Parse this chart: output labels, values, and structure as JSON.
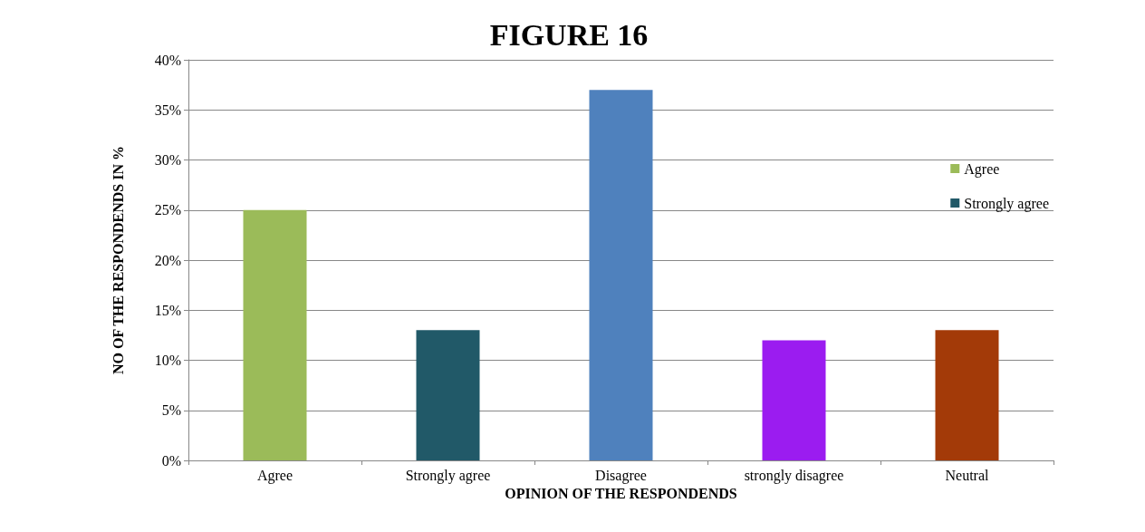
{
  "chart_data": {
    "type": "bar",
    "title": "FIGURE 16",
    "xlabel": "OPINION OF THE RESPONDENDS",
    "ylabel": "NO OF THE RESPONDENDS IN %",
    "categories": [
      "Agree",
      "Strongly agree",
      "Disagree",
      "strongly disagree",
      "Neutral"
    ],
    "series": [
      {
        "name": "Agree",
        "color": "#9bbb59",
        "values": [
          25,
          null,
          null,
          null,
          null
        ]
      },
      {
        "name": "Strongly agree",
        "color": "#215968",
        "values": [
          null,
          13,
          null,
          null,
          null
        ]
      },
      {
        "color": "#4f81bd",
        "values": [
          null,
          null,
          37,
          null,
          null
        ]
      },
      {
        "color": "#9b1cf0",
        "values": [
          null,
          null,
          null,
          12,
          null
        ]
      },
      {
        "color": "#a33a08",
        "values": [
          null,
          null,
          null,
          null,
          13
        ]
      }
    ],
    "ylim": [
      0,
      40
    ],
    "yticks": [
      {
        "value": 0,
        "label": "0%"
      },
      {
        "value": 5,
        "label": "5%"
      },
      {
        "value": 10,
        "label": "10%"
      },
      {
        "value": 15,
        "label": "15%"
      },
      {
        "value": 20,
        "label": "20%"
      },
      {
        "value": 25,
        "label": "25%"
      },
      {
        "value": 30,
        "label": "30%"
      },
      {
        "value": 35,
        "label": "35%"
      },
      {
        "value": 40,
        "label": "40%"
      }
    ],
    "grid": "y",
    "legend": "top right"
  }
}
